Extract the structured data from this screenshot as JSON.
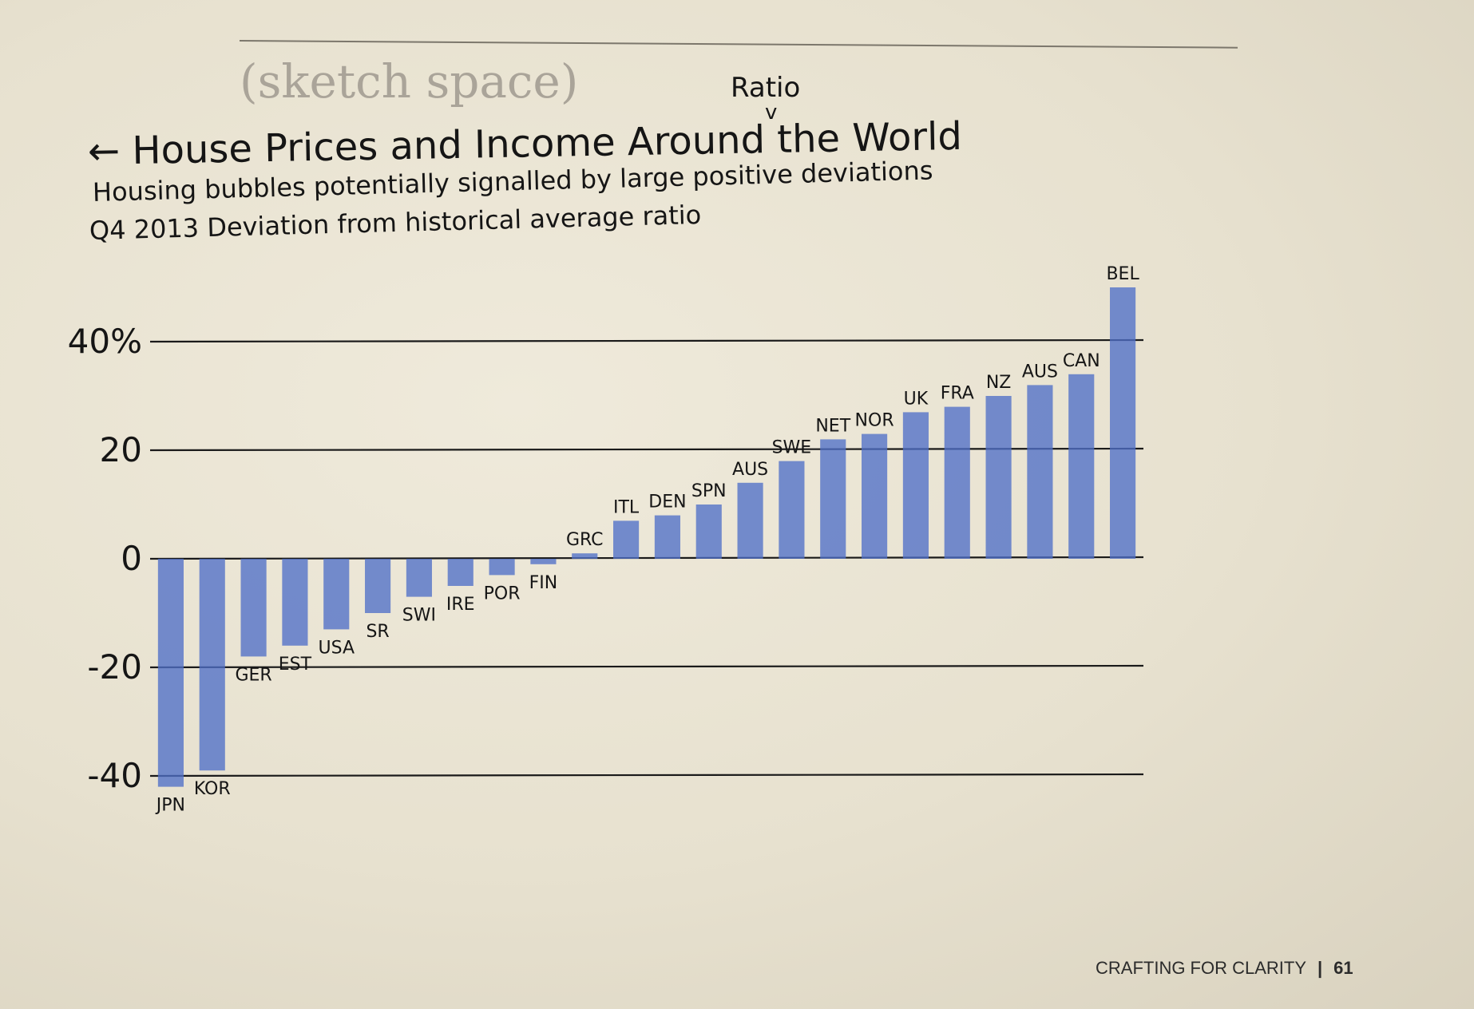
{
  "page": {
    "sketch_label": "(sketch space)",
    "ratio_note": "Ratio",
    "ratio_caret": "v",
    "footer_text": "CRAFTING FOR CLARITY",
    "footer_separator": "|",
    "page_number": "61"
  },
  "chart_data": {
    "type": "bar",
    "title": "← House Prices and Income Around the World",
    "subtitle": "Housing bubbles potentially signalled by large positive deviations",
    "note": "Q4 2013 Deviation from historical average ratio",
    "categories": [
      "JPN",
      "KOR",
      "GER",
      "EST",
      "USA",
      "SR",
      "SWI",
      "IRE",
      "POR",
      "FIN",
      "GRC",
      "ITL",
      "DEN",
      "SPN",
      "AUS",
      "SWE",
      "NET",
      "NOR",
      "UK",
      "FRA",
      "NZ",
      "AUS",
      "CAN",
      "BEL"
    ],
    "values": [
      -42,
      -39,
      -18,
      -16,
      -13,
      -10,
      -7,
      -5,
      -3,
      -1,
      1,
      7,
      8,
      10,
      14,
      18,
      22,
      23,
      27,
      28,
      30,
      32,
      34,
      50
    ],
    "ylim": [
      -44,
      52
    ],
    "yticks": [
      -40,
      -20,
      0,
      20,
      40
    ],
    "ytick_labels": [
      "-40",
      "-20",
      "0",
      "20",
      "40%"
    ],
    "bar_color": "#4f6fc8",
    "grid": true
  }
}
